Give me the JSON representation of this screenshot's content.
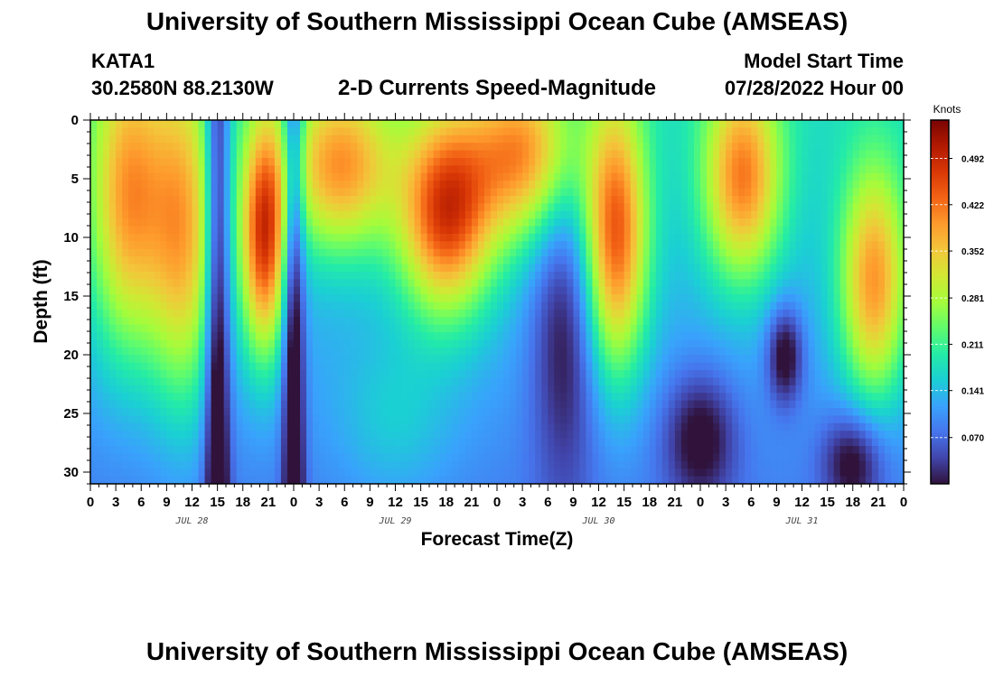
{
  "header": {
    "title": "University of Southern Mississippi Ocean Cube (AMSEAS)",
    "title_repeat": "University of Southern Mississippi Ocean Cube (AMSEAS)",
    "station": "KATA1",
    "coords": "30.2580N  88.2130W",
    "plot_title": "2-D Currents Speed-Magnitude",
    "model_label": "Model Start Time",
    "model_time": "07/28/2022 Hour 00"
  },
  "chart_data": {
    "type": "heatmap",
    "xlabel": "Forecast Time(Z)",
    "ylabel": "Depth (ft)",
    "x_range_hours": [
      0,
      96
    ],
    "y_range_ft": [
      0,
      31
    ],
    "y_inverted": true,
    "y_ticks": [
      "0",
      "5",
      "10",
      "15",
      "20",
      "25",
      "30"
    ],
    "y_tick_values": [
      0,
      5,
      10,
      15,
      20,
      25,
      30
    ],
    "x_ticks": [
      "0",
      "3",
      "6",
      "9",
      "12",
      "15",
      "18",
      "21",
      "0",
      "3",
      "6",
      "9",
      "12",
      "15",
      "18",
      "21",
      "0",
      "3",
      "6",
      "9",
      "12",
      "15",
      "18",
      "21",
      "0",
      "3",
      "6",
      "9",
      "12",
      "15",
      "18",
      "21",
      "0"
    ],
    "day_labels": [
      "JUL 28",
      "JUL 29",
      "JUL 30",
      "JUL 31"
    ],
    "colorbar": {
      "units": "Knots",
      "ticks": [
        "0.492",
        "0.422",
        "0.352",
        "0.281",
        "0.211",
        "0.141",
        "0.070"
      ],
      "tick_values": [
        0.492,
        0.422,
        0.352,
        0.281,
        0.211,
        0.141,
        0.07
      ],
      "range": [
        0,
        0.55
      ],
      "colormap": [
        "#30123b",
        "#4145ab",
        "#4675ed",
        "#39a2fc",
        "#1bcfd4",
        "#24eca6",
        "#61fc6c",
        "#a4fc3b",
        "#d1e834",
        "#f3c63a",
        "#fe9b2d",
        "#f36315",
        "#d93806",
        "#b11901",
        "#7a0402"
      ]
    }
  }
}
